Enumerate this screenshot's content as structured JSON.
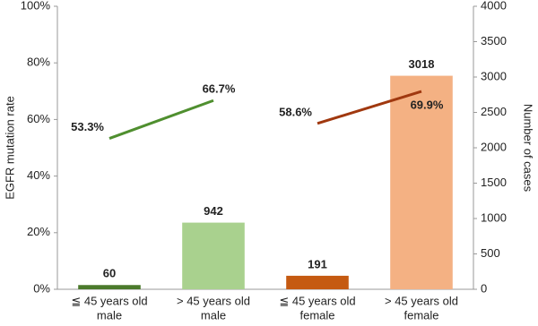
{
  "chart_data": {
    "type": "combo",
    "categories": [
      [
        "≦ 45 years old",
        "male"
      ],
      [
        "> 45 years old",
        "male"
      ],
      [
        "≦ 45 years old",
        "female"
      ],
      [
        "> 45 years old",
        "female"
      ]
    ],
    "ylabel": "EGFR mutation rate",
    "y2label": "Number of cases",
    "ylim": [
      0,
      100
    ],
    "yticks": [
      {
        "value": 0,
        "label": "0%"
      },
      {
        "value": 20,
        "label": "20%"
      },
      {
        "value": 40,
        "label": "40%"
      },
      {
        "value": 60,
        "label": "60%"
      },
      {
        "value": 80,
        "label": "80%"
      },
      {
        "value": 100,
        "label": "100%"
      }
    ],
    "y2lim": [
      0,
      4000
    ],
    "y2ticks": [
      0,
      500,
      1000,
      1500,
      2000,
      2500,
      3000,
      3500,
      4000
    ],
    "series": [
      {
        "type": "bar",
        "axis": "y2",
        "values": [
          60,
          942,
          191,
          3018
        ],
        "colors": [
          "#4b7a2b",
          "#a9d18e",
          "#c55a11",
          "#f4b183"
        ]
      },
      {
        "type": "line",
        "color": "#4f8f2f",
        "values": [
          53.3,
          66.7,
          null,
          null
        ],
        "value_labels": [
          "53.3%",
          "66.7%",
          null,
          null
        ]
      },
      {
        "type": "line",
        "color": "#a0380f",
        "values": [
          null,
          null,
          58.6,
          69.9
        ],
        "value_labels": [
          null,
          null,
          "58.6%",
          "69.9%"
        ]
      }
    ]
  }
}
